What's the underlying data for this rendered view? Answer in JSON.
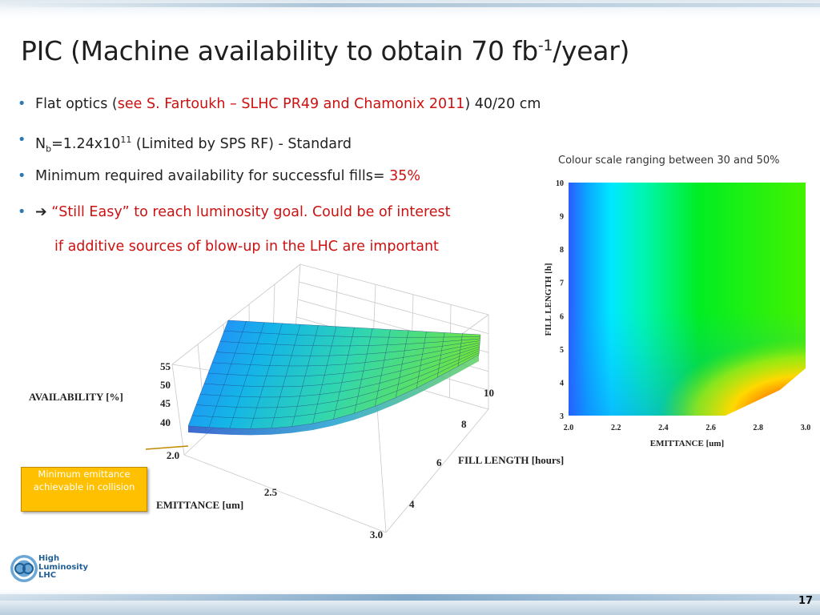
{
  "slide": {
    "title_main": "PIC (Machine availability to obtain 70 fb",
    "title_sup": "-1",
    "title_end": "/year)",
    "page_number": "17"
  },
  "bullets": [
    {
      "pre": "Flat optics (",
      "red": "see S. Fartoukh – SLHC PR49 and Chamonix 2011",
      "post": ") 40/20 cm"
    },
    {
      "n": "N",
      "n_sub": "b",
      "mid": "=1.24x10",
      "exp": "11",
      "post": " (Limited by SPS RF) - Standard"
    },
    {
      "pre": "Minimum required availability for successful fills= ",
      "red": "35%"
    },
    {
      "arrow": "➔",
      "red": " “Still Easy” to reach luminosity goal. Could be of interest"
    }
  ],
  "continuation": "if additive sources of blow-up in the LHC are important",
  "heatmap": {
    "caption": "Colour scale ranging between 30 and 50%",
    "xlabel": "EMITTANCE [um]",
    "ylabel": "FILL LENGTH [h]",
    "xticks": [
      "2.0",
      "2.2",
      "2.4",
      "2.6",
      "2.8",
      "3.0"
    ],
    "yticks": [
      "3",
      "4",
      "5",
      "6",
      "7",
      "8",
      "9",
      "10"
    ]
  },
  "surface": {
    "zlabel": "AVAILABILITY [%]",
    "zticks": [
      "55",
      "50",
      "45",
      "40"
    ],
    "xlabel": "EMITTANCE [um]",
    "xticks": [
      "2.0",
      "2.5",
      "3.0"
    ],
    "ylabel": "FILL LENGTH [hours]",
    "yticks": [
      "10",
      "8",
      "6",
      "4"
    ]
  },
  "callout": {
    "text": "Minimum emittance achievable in collision",
    "color": "#ffc000"
  },
  "logo": {
    "line1": "High",
    "line2": "Luminosity",
    "line3": "LHC"
  },
  "colors": {
    "accent_red": "#cc1111",
    "bullet_blue": "#2a7ab5"
  }
}
